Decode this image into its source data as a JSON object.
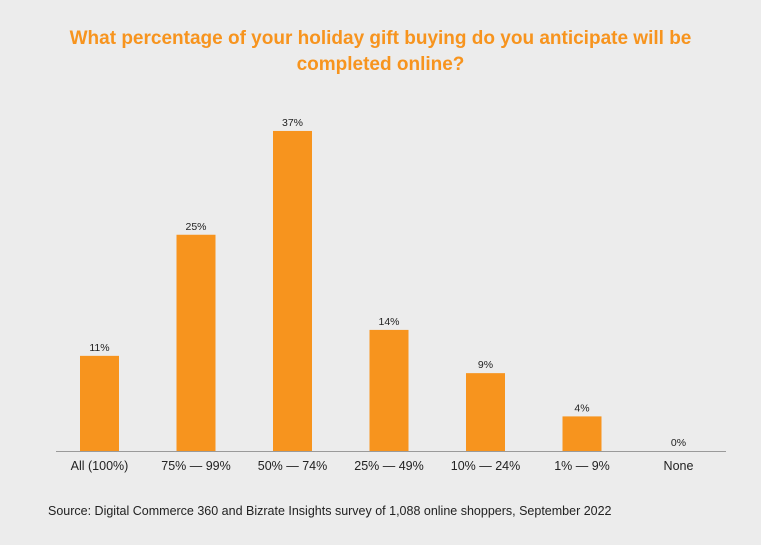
{
  "colors": {
    "background": "#ececec",
    "bar": "#f7941e",
    "title": "#f7941e",
    "axis": "#9a9a9a",
    "text": "#222222"
  },
  "chart_data": {
    "type": "bar",
    "title": "What percentage of your holiday gift buying do you anticipate will be completed online?",
    "categories": [
      "All (100%)",
      "75% — 99%",
      "50% — 74%",
      "25% — 49%",
      "10% — 24%",
      "1% — 9%",
      "None"
    ],
    "values": [
      11,
      25,
      37,
      14,
      9,
      4,
      0
    ],
    "data_labels": [
      "11%",
      "25%",
      "37%",
      "14%",
      "9%",
      "4%",
      "0%"
    ],
    "unit": "%",
    "ylim": [
      0,
      40
    ],
    "grid": false,
    "legend": "none"
  },
  "source": "Source:  Digital Commerce 360 and Bizrate Insights survey of 1,088 online shoppers, September  2022"
}
